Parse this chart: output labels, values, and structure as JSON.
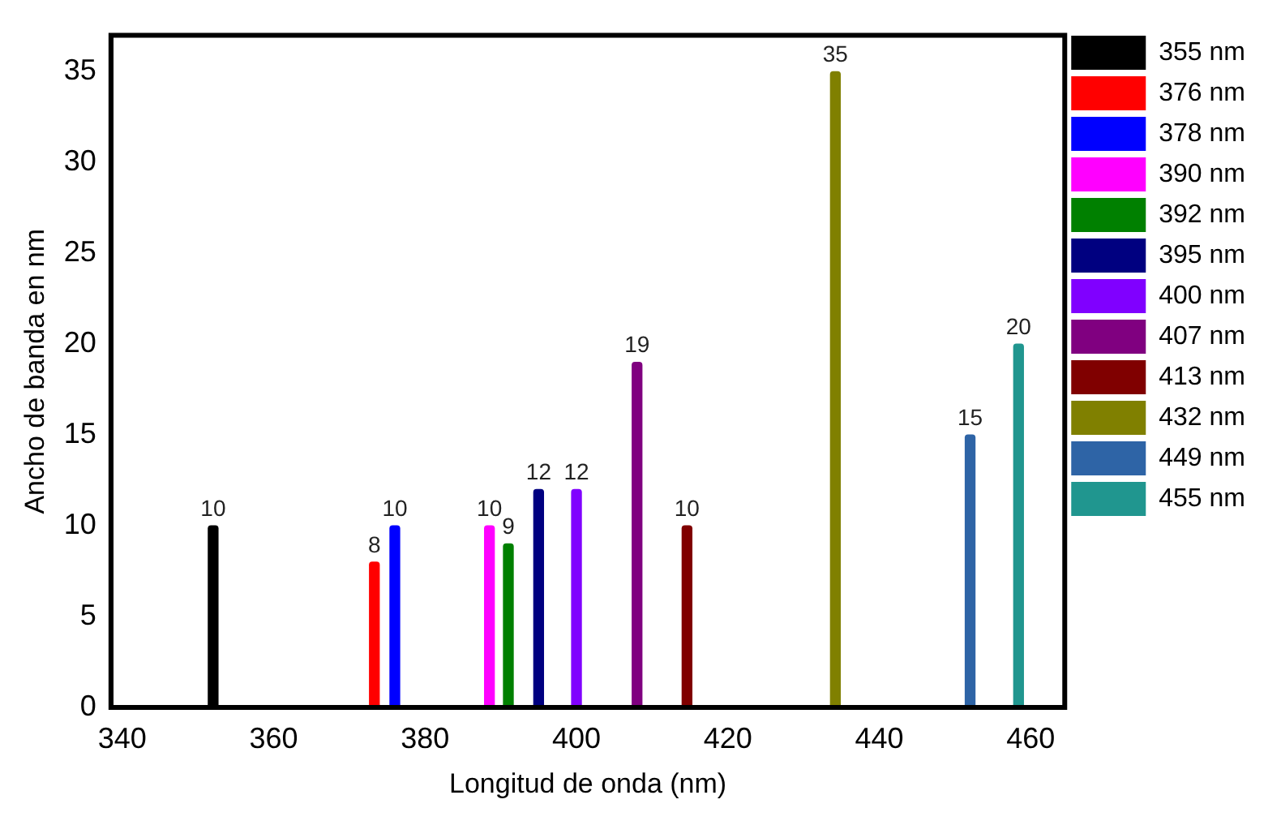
{
  "chart_data": {
    "type": "bar",
    "xlabel": "Longitud de onda (nm)",
    "ylabel": "Ancho de banda en nm",
    "xlim": [
      338.5,
      464.5
    ],
    "xticks": [
      340,
      360,
      380,
      400,
      420,
      440,
      460
    ],
    "ylim": [
      0,
      37
    ],
    "yticks": [
      0,
      5,
      10,
      15,
      20,
      25,
      30,
      35
    ],
    "grid": false,
    "legend": "right",
    "data_labels": true,
    "series": [
      {
        "name": "355 nm",
        "color": "#000000",
        "x": [
          352
        ],
        "values": [
          10
        ]
      },
      {
        "name": "376 nm",
        "color": "#ff0000",
        "x": [
          373.3
        ],
        "values": [
          8
        ]
      },
      {
        "name": "378 nm",
        "color": "#0000ff",
        "x": [
          376
        ],
        "values": [
          10
        ]
      },
      {
        "name": "390 nm",
        "color": "#ff00ff",
        "x": [
          388.5
        ],
        "values": [
          10
        ]
      },
      {
        "name": "392 nm",
        "color": "#008000",
        "x": [
          391
        ],
        "values": [
          9
        ]
      },
      {
        "name": "395 nm",
        "color": "#000080",
        "x": [
          395
        ],
        "values": [
          12
        ]
      },
      {
        "name": "400 nm",
        "color": "#8000ff",
        "x": [
          400
        ],
        "values": [
          12
        ]
      },
      {
        "name": "407 nm",
        "color": "#800080",
        "x": [
          408
        ],
        "values": [
          19
        ]
      },
      {
        "name": "413 nm",
        "color": "#800000",
        "x": [
          414.6
        ],
        "values": [
          10
        ]
      },
      {
        "name": "432 nm",
        "color": "#808000",
        "x": [
          434.2
        ],
        "values": [
          35
        ]
      },
      {
        "name": "449 nm",
        "color": "#2e64a6",
        "x": [
          452
        ],
        "values": [
          15
        ]
      },
      {
        "name": "455 nm",
        "color": "#20968f",
        "x": [
          458.4
        ],
        "values": [
          20
        ]
      }
    ]
  }
}
